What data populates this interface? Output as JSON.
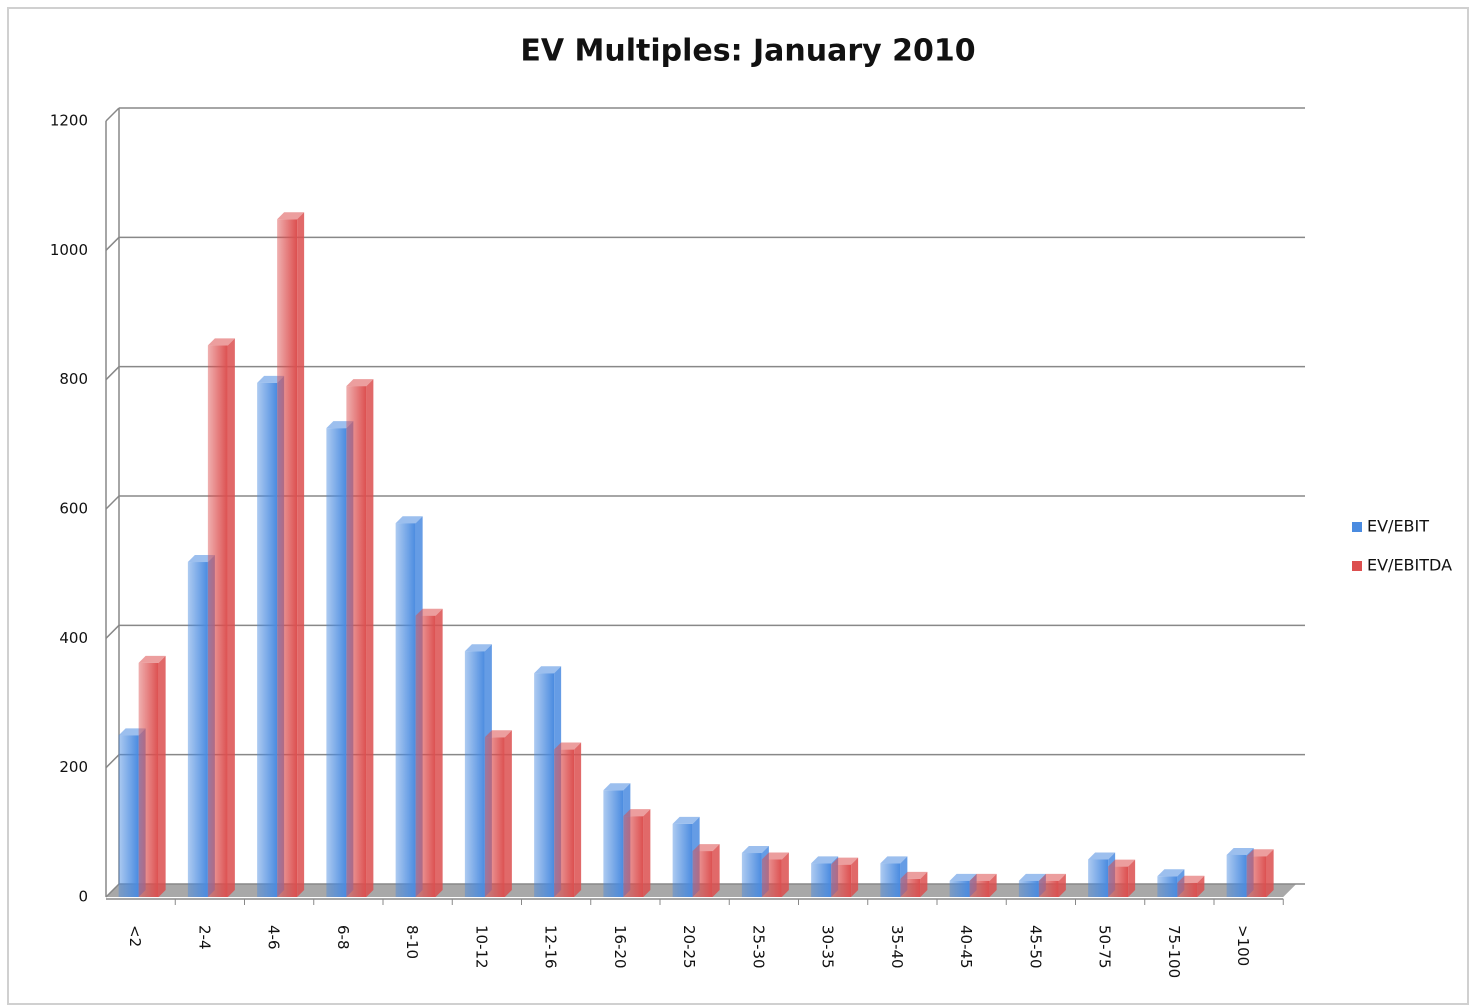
{
  "chart_data": {
    "type": "bar",
    "title": "EV Multiples: January 2010",
    "categories": [
      "<2",
      "2-4",
      "4-6",
      "6-8",
      "8-10",
      "10-12",
      "12-16",
      "16-20",
      "20-25",
      "25-30",
      "30-35",
      "35-40",
      "40-45",
      "45-50",
      "50-75",
      "75-100",
      ">100"
    ],
    "series": [
      {
        "name": "EV/EBIT",
        "color": "#4a8be0",
        "values": [
          250,
          518,
          795,
          725,
          578,
          380,
          346,
          165,
          113,
          68,
          52,
          52,
          25,
          25,
          58,
          32,
          65
        ]
      },
      {
        "name": "EV/EBITDA",
        "color": "#dc4f4f",
        "values": [
          362,
          853,
          1048,
          790,
          435,
          247,
          228,
          125,
          71,
          58,
          50,
          28,
          25,
          25,
          47,
          22,
          63
        ]
      }
    ],
    "ylim": [
      0,
      1200
    ],
    "yticks": [
      0,
      200,
      400,
      600,
      800,
      1000,
      1200
    ],
    "grid": true,
    "legend": "right"
  }
}
